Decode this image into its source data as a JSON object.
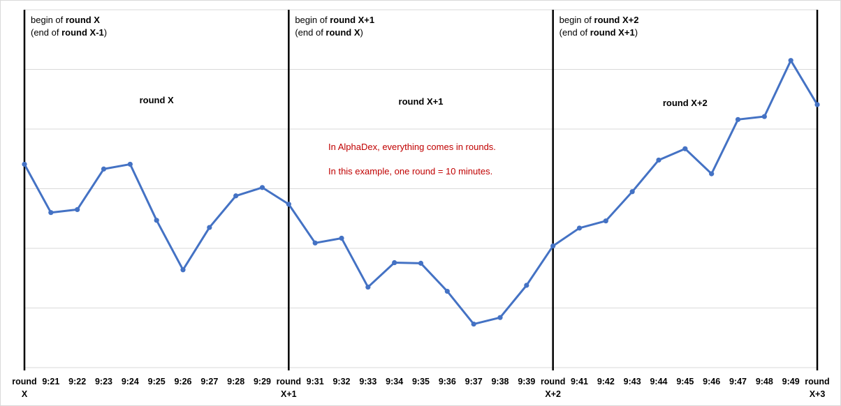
{
  "chart_data": {
    "type": "line",
    "x": [
      "round X",
      "9:21",
      "9:22",
      "9:23",
      "9:24",
      "9:25",
      "9:26",
      "9:27",
      "9:28",
      "9:29",
      "round X+1",
      "9:31",
      "9:32",
      "9:33",
      "9:34",
      "9:35",
      "9:36",
      "9:37",
      "9:38",
      "9:39",
      "round X+2",
      "9:41",
      "9:42",
      "9:43",
      "9:44",
      "9:45",
      "9:46",
      "9:47",
      "9:48",
      "9:49",
      "round X+3"
    ],
    "values": [
      3.41,
      2.6,
      2.65,
      3.33,
      3.41,
      2.47,
      1.64,
      2.35,
      2.88,
      3.02,
      2.74,
      2.09,
      2.17,
      1.35,
      1.76,
      1.75,
      1.28,
      0.73,
      0.84,
      1.38,
      2.04,
      2.34,
      2.46,
      2.95,
      3.48,
      3.67,
      3.25,
      4.16,
      4.21,
      5.15,
      4.41
    ],
    "ylim": [
      0,
      6
    ],
    "grid": true,
    "line_color": "#4472c4",
    "dividers": [
      "round X",
      "round X+1",
      "round X+2",
      "round X+3"
    ],
    "boundary_annotations": [
      {
        "at": "round X",
        "line1_plain": "begin of ",
        "line1_bold": "round X",
        "line2_plain": "(end of ",
        "line2_bold": "round X-1",
        "line2_close": ")"
      },
      {
        "at": "round X+1",
        "line1_plain": "begin of ",
        "line1_bold": "round X+1",
        "line2_plain": "(end of ",
        "line2_bold": "round X",
        "line2_close": ")"
      },
      {
        "at": "round X+2",
        "line1_plain": "begin of ",
        "line1_bold": "round X+2",
        "line2_plain": "(end of ",
        "line2_bold": "round X+1",
        "line2_close": ")"
      }
    ],
    "round_labels": [
      "round X",
      "round X+1",
      "round X+2"
    ],
    "note_lines": [
      "In AlphaDex, everything comes in rounds.",
      "In this example, one round = 10 minutes."
    ],
    "note_color": "#c00000"
  }
}
